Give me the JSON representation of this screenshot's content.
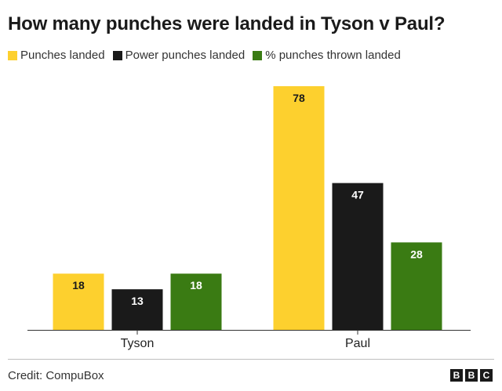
{
  "chart_data": {
    "type": "bar",
    "title": "How many punches were landed in Tyson v Paul?",
    "categories": [
      "Tyson",
      "Paul"
    ],
    "series": [
      {
        "name": "Punches landed",
        "values": [
          18,
          78
        ],
        "color": "#fdd02e"
      },
      {
        "name": "Power punches landed",
        "values": [
          13,
          47
        ],
        "color": "#1a1a1a"
      },
      {
        "name": "% punches thrown landed",
        "values": [
          18,
          28
        ],
        "color": "#3a7b13"
      }
    ],
    "ylim": [
      0,
      80
    ],
    "grid": false,
    "legend": "top-left",
    "data_labels": true
  },
  "footer": {
    "credit": "Credit: CompuBox",
    "logo": [
      "B",
      "B",
      "C"
    ]
  }
}
